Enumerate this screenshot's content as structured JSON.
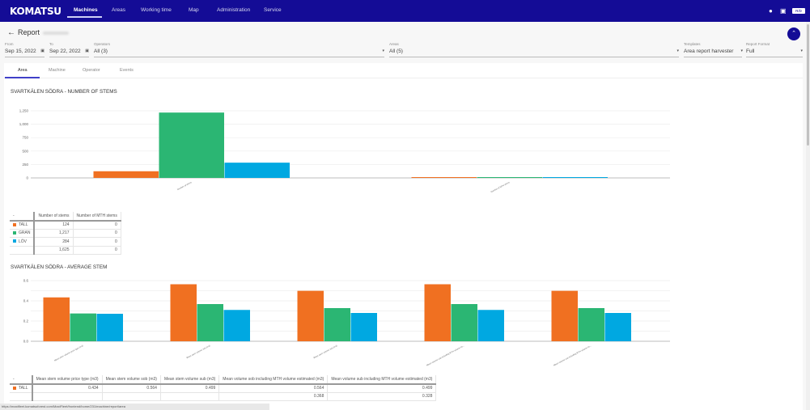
{
  "nav": {
    "logo": "KOMATSU",
    "items": [
      "Machines",
      "Areas",
      "Working time",
      "Map",
      "Administration",
      "Service"
    ],
    "active": "Machines",
    "lang": "R/D"
  },
  "header": {
    "title": "Report",
    "back_icon": "arrow-left-icon",
    "collapse_icon": "chevron-up-icon"
  },
  "filters": {
    "from": {
      "label": "From",
      "value": "Sep 15, 2022"
    },
    "to": {
      "label": "To",
      "value": "Sep 22, 2022"
    },
    "operators": {
      "label": "Operators",
      "value": "All (3)"
    },
    "areas": {
      "label": "Areas",
      "value": "All (5)"
    },
    "templates": {
      "label": "Templates",
      "value": "Area report harvester"
    },
    "format": {
      "label": "Report Format",
      "value": "Full"
    }
  },
  "tabs": [
    "Area",
    "Machine",
    "Operator",
    "Events"
  ],
  "active_tab": "Area",
  "colors": {
    "TALL": "#f07021",
    "GRAN": "#2bb673",
    "LÖV": "#00a8e1",
    "nav": "#140c96"
  },
  "chart_data": [
    {
      "type": "bar",
      "title": "SVARTKÄLEN SÖDRA - NUMBER OF STEMS",
      "categories": [
        "Number of stems",
        "Number of MTH stems"
      ],
      "series": [
        {
          "name": "TALL",
          "values": [
            124,
            0
          ]
        },
        {
          "name": "GRAN",
          "values": [
            1217,
            0
          ]
        },
        {
          "name": "LÖV",
          "values": [
            284,
            0
          ]
        }
      ],
      "ylim": [
        0,
        1250
      ],
      "yticks": [
        "0",
        "250",
        "500",
        "750",
        "1,000",
        "1,250"
      ],
      "grid": true
    },
    {
      "type": "bar",
      "title": "SVARTKÄLEN SÖDRA - AVERAGE STEM",
      "categories": [
        "Mean stem volume price type (m3)",
        "Mean stem volume sob (m3)",
        "Mean stem volume sub (m3)",
        "Mean volume sob including MTH volume es...",
        "Mean volume sub including MTH volume es..."
      ],
      "series": [
        {
          "name": "TALL",
          "values": [
            0.434,
            0.564,
            0.499,
            0.564,
            0.499
          ]
        },
        {
          "name": "GRAN",
          "values": [
            0.275,
            0.368,
            0.328,
            0.368,
            0.328
          ]
        },
        {
          "name": "LÖV",
          "values": [
            0.272,
            0.31,
            0.28,
            0.31,
            0.28
          ]
        }
      ],
      "ylim": [
        0,
        0.6
      ],
      "yticks": [
        "0.0",
        "0.2",
        "0.4",
        "0.6"
      ],
      "grid": true
    }
  ],
  "table1": {
    "corner": "-",
    "headers": [
      "Number of stems",
      "Number of MTH stems"
    ],
    "rows": [
      {
        "name": "TALL",
        "values": [
          "124",
          "0"
        ]
      },
      {
        "name": "GRAN",
        "values": [
          "1,217",
          "0"
        ]
      },
      {
        "name": "LÖV",
        "values": [
          "284",
          "0"
        ]
      },
      {
        "name": "",
        "values": [
          "1,625",
          "0"
        ]
      }
    ]
  },
  "table2": {
    "corner": "-",
    "headers": [
      "Mean stem volume price type (m3)",
      "Mean stem volume sob (m3)",
      "Mean stem volume sub (m3)",
      "Mean volume sob including MTH volume estimated (m3)",
      "Mean volume sub including MTH volume estimated (m3)"
    ],
    "rows": [
      {
        "name": "TALL",
        "values": [
          "0.434",
          "0.564",
          "0.499",
          "0.564",
          "0.499"
        ]
      },
      {
        "name": "",
        "values": [
          "",
          "",
          "",
          "0.368",
          "0.328"
        ]
      }
    ]
  },
  "status_url": "https://maxifleet.komatsuforest.com/MaxiFleet/frontend/home/231/machine/report/area"
}
